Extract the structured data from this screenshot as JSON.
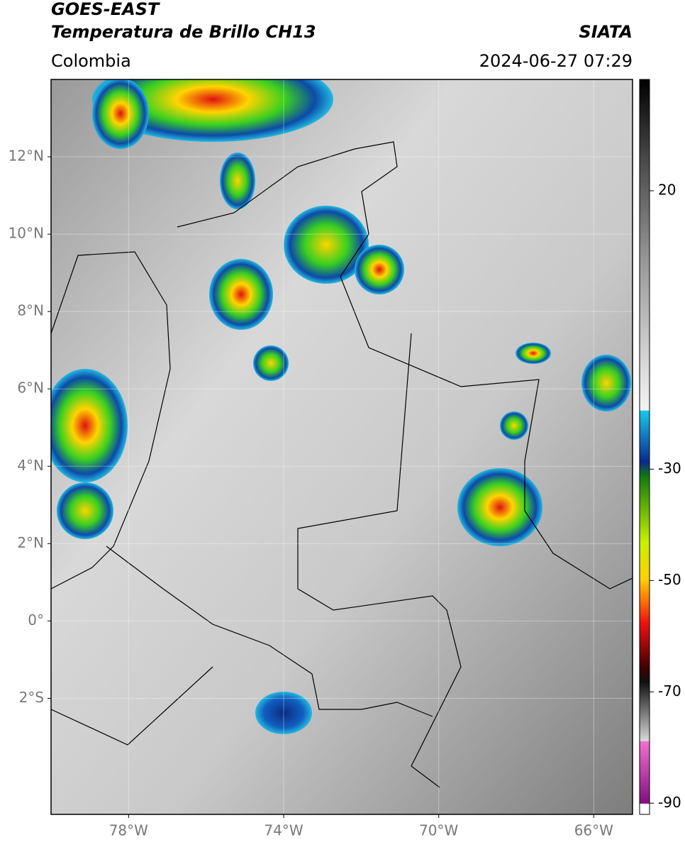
{
  "header": {
    "title": "GOES-EAST",
    "subtitle": "Temperatura de Brillo CH13",
    "source": "SIATA",
    "region": "Colombia",
    "timestamp": "2024-06-27 07:29"
  },
  "map": {
    "lonlim": [
      -80,
      -65
    ],
    "latlim": [
      -5,
      14
    ],
    "lonticks": [
      {
        "value": -78,
        "label": "78°W"
      },
      {
        "value": -74,
        "label": "74°W"
      },
      {
        "value": -70,
        "label": "70°W"
      },
      {
        "value": -66,
        "label": "66°W"
      }
    ],
    "latticks": [
      {
        "value": 12,
        "label": "12°N"
      },
      {
        "value": 10,
        "label": "10°N"
      },
      {
        "value": 8,
        "label": "8°N"
      },
      {
        "value": 6,
        "label": "6°N"
      },
      {
        "value": 4,
        "label": "4°N"
      },
      {
        "value": 2,
        "label": "2°N"
      },
      {
        "value": 0,
        "label": "0°"
      },
      {
        "value": -2,
        "label": "2°S"
      }
    ],
    "grid": true
  },
  "colorbar": {
    "clim": [
      -92,
      40
    ],
    "ticks": [
      20,
      -30,
      -50,
      -70,
      -90
    ]
  }
}
